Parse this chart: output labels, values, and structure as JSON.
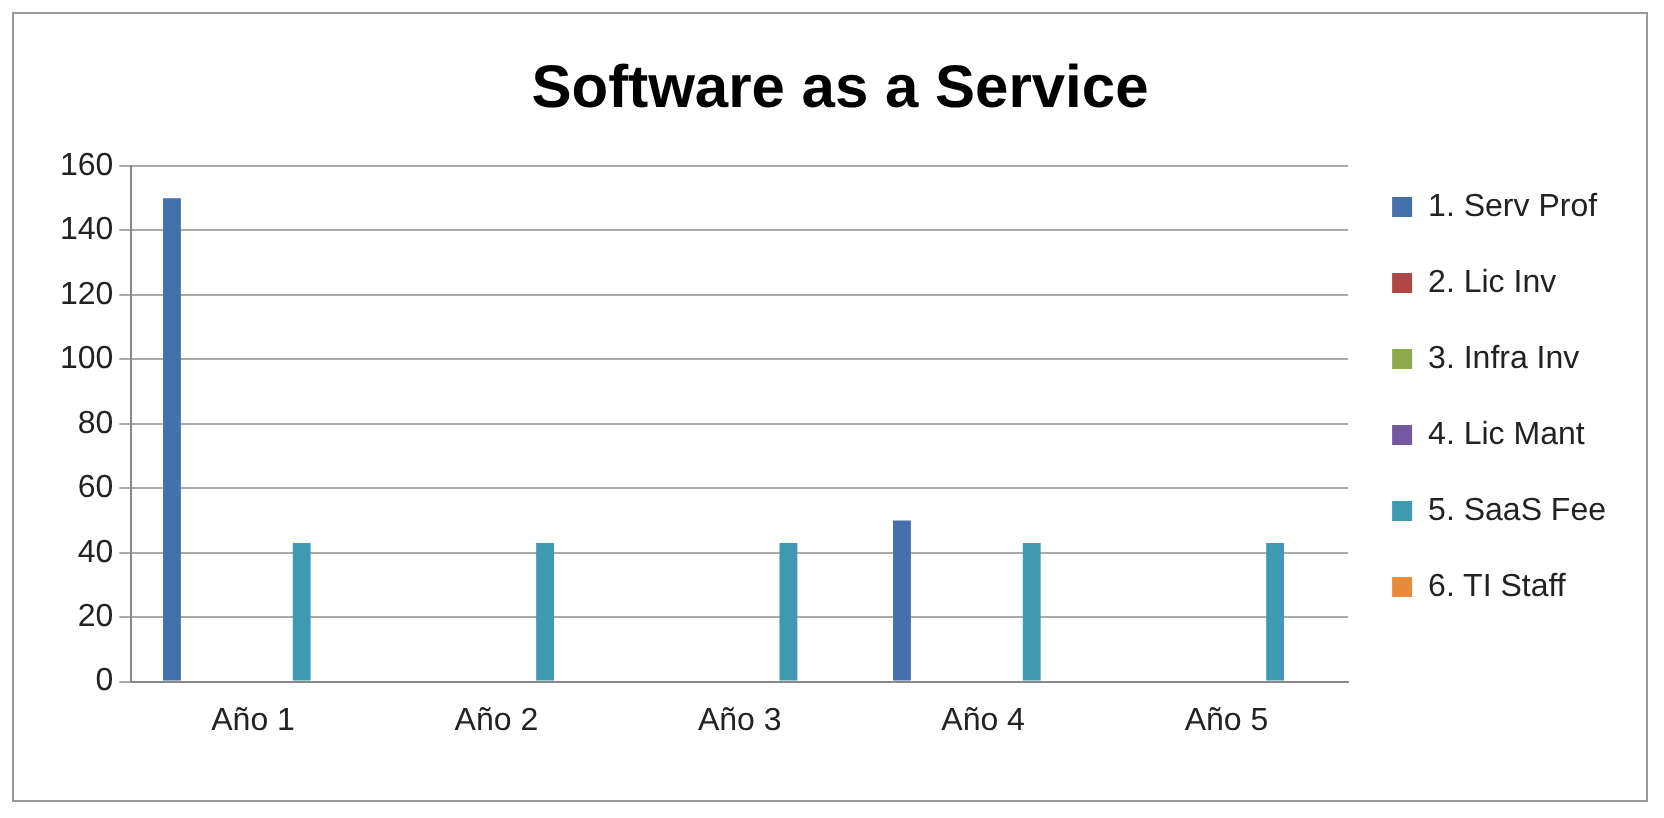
{
  "chart_data": {
    "type": "bar",
    "title": "Software as a Service",
    "categories": [
      "Año 1",
      "Año 2",
      "Año 3",
      "Año 4",
      "Año 5"
    ],
    "series": [
      {
        "name": "1. Serv Prof",
        "color": "#4470ab",
        "values": [
          150,
          0,
          0,
          50,
          0
        ]
      },
      {
        "name": "2. Lic Inv",
        "color": "#b04744",
        "values": [
          0,
          0,
          0,
          0,
          0
        ]
      },
      {
        "name": "3. Infra Inv",
        "color": "#8eab4c",
        "values": [
          0,
          0,
          0,
          0,
          0
        ]
      },
      {
        "name": "4. Lic Mant",
        "color": "#7459a0",
        "values": [
          0,
          0,
          0,
          0,
          0
        ]
      },
      {
        "name": "5. SaaS Fee",
        "color": "#3f99b0",
        "values": [
          43,
          43,
          43,
          43,
          43
        ]
      },
      {
        "name": "6. TI Staff",
        "color": "#e88b3a",
        "values": [
          0,
          0,
          0,
          0,
          0
        ]
      }
    ],
    "ylim": [
      0,
      160
    ],
    "yticks": [
      0,
      20,
      40,
      60,
      80,
      100,
      120,
      140,
      160
    ],
    "grid": "y",
    "legend": "right"
  }
}
